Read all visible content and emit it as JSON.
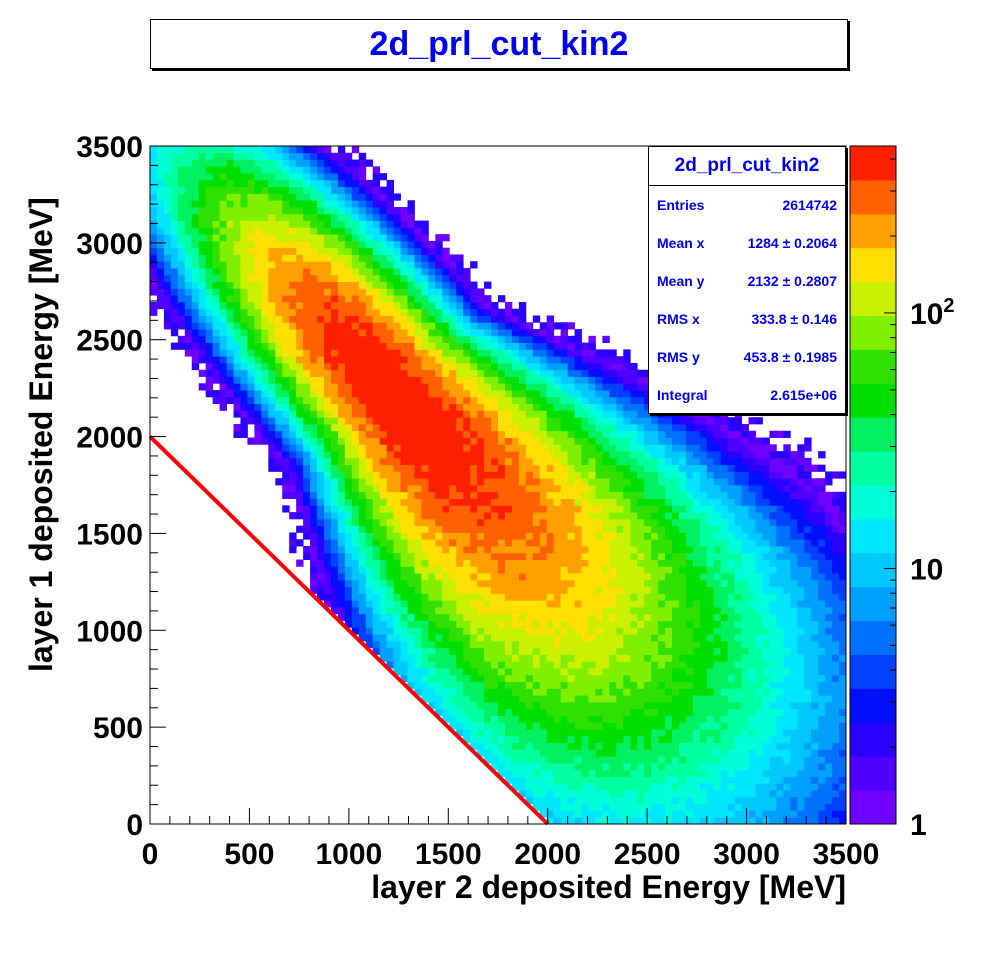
{
  "title": "2d_prl_cut_kin2",
  "colors": {
    "title_text": "#0000ee",
    "stat_text": "#0000ee",
    "cut_line": "#ff0000"
  },
  "stats": {
    "title": "2d_prl_cut_kin2",
    "rows": [
      {
        "label": "Entries",
        "value": "2614742"
      },
      {
        "label": "Mean x",
        "value": "1284 ± 0.2064"
      },
      {
        "label": "Mean y",
        "value": "2132 ± 0.2807"
      },
      {
        "label": "RMS x",
        "value": "333.8 ±  0.146"
      },
      {
        "label": "RMS y",
        "value": "453.8 ± 0.1985"
      },
      {
        "label": "Integral",
        "value": "2.615e+06"
      }
    ]
  },
  "chart_data": {
    "type": "heatmap",
    "title": "2d_prl_cut_kin2",
    "xlabel": "layer 2 deposited Energy [MeV]",
    "ylabel": "layer 1 deposited Energy [MeV]",
    "xlim": [
      0,
      3500
    ],
    "ylim": [
      0,
      3500
    ],
    "x_ticks": [
      "0",
      "500",
      "1000",
      "1500",
      "2000",
      "2500",
      "3000",
      "3500"
    ],
    "y_ticks": [
      "0",
      "500",
      "1000",
      "1500",
      "2000",
      "2500",
      "3000",
      "3500"
    ],
    "z_scale": "log",
    "colorbar_ticks": [
      {
        "label": "1",
        "exp": "",
        "value": 1
      },
      {
        "label": "10",
        "exp": "",
        "value": 10
      },
      {
        "label": "10",
        "exp": "2",
        "value": 100
      }
    ],
    "colorbar_range": [
      1,
      450
    ],
    "distribution": {
      "mean_x": 1284,
      "mean_y": 2132,
      "rms_x": 333.8,
      "rms_y": 453.8,
      "entries": 2614742,
      "peak_x": 1200,
      "peak_y": 2250
    },
    "cut_boundary": {
      "x0": 0,
      "y0": 2000,
      "x1": 2000,
      "y1": 0
    },
    "grid": false
  }
}
